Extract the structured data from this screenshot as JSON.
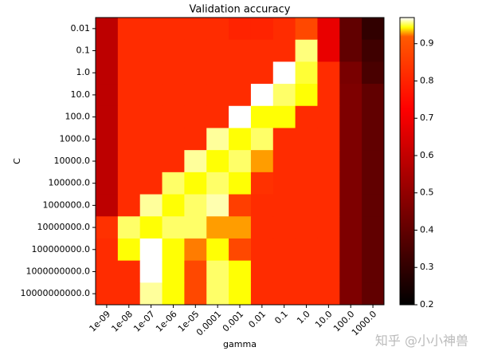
{
  "chart_data": {
    "type": "heatmap",
    "title": "Validation accuracy",
    "x_label": "gamma",
    "y_label": "C",
    "x_categories": [
      "1e-09",
      "1e-08",
      "1e-07",
      "1e-06",
      "1e-05",
      "0.0001",
      "0.001",
      "0.01",
      "0.1",
      "1.0",
      "10.0",
      "100.0",
      "1000.0"
    ],
    "y_categories": [
      "0.01",
      "0.1",
      "1.0",
      "10.0",
      "100.0",
      "1000.0",
      "10000.0",
      "100000.0",
      "1000000.0",
      "10000000.0",
      "100000000.0",
      "1000000000.0",
      "10000000000.0"
    ],
    "values": [
      [
        0.59,
        0.82,
        0.82,
        0.82,
        0.82,
        0.82,
        0.8,
        0.8,
        0.82,
        0.88,
        0.68,
        0.4,
        0.3
      ],
      [
        0.59,
        0.82,
        0.82,
        0.82,
        0.82,
        0.82,
        0.82,
        0.82,
        0.82,
        0.957,
        0.68,
        0.4,
        0.33
      ],
      [
        0.59,
        0.82,
        0.82,
        0.82,
        0.82,
        0.82,
        0.82,
        0.82,
        0.97,
        0.95,
        0.82,
        0.45,
        0.35
      ],
      [
        0.59,
        0.82,
        0.82,
        0.82,
        0.82,
        0.82,
        0.82,
        0.97,
        0.955,
        0.945,
        0.82,
        0.46,
        0.4
      ],
      [
        0.59,
        0.82,
        0.82,
        0.82,
        0.82,
        0.82,
        0.97,
        0.945,
        0.945,
        0.82,
        0.82,
        0.46,
        0.4
      ],
      [
        0.59,
        0.82,
        0.82,
        0.82,
        0.82,
        0.96,
        0.945,
        0.955,
        0.82,
        0.82,
        0.82,
        0.46,
        0.4
      ],
      [
        0.59,
        0.82,
        0.82,
        0.82,
        0.96,
        0.945,
        0.955,
        0.93,
        0.82,
        0.82,
        0.82,
        0.46,
        0.4
      ],
      [
        0.59,
        0.82,
        0.82,
        0.955,
        0.945,
        0.955,
        0.945,
        0.83,
        0.82,
        0.82,
        0.82,
        0.46,
        0.4
      ],
      [
        0.59,
        0.82,
        0.96,
        0.945,
        0.955,
        0.962,
        0.86,
        0.82,
        0.82,
        0.82,
        0.82,
        0.46,
        0.4
      ],
      [
        0.83,
        0.955,
        0.945,
        0.955,
        0.955,
        0.93,
        0.93,
        0.82,
        0.82,
        0.82,
        0.82,
        0.46,
        0.4
      ],
      [
        0.82,
        0.945,
        0.97,
        0.945,
        0.925,
        0.945,
        0.88,
        0.82,
        0.82,
        0.82,
        0.82,
        0.46,
        0.4
      ],
      [
        0.82,
        0.82,
        0.97,
        0.945,
        0.88,
        0.955,
        0.945,
        0.82,
        0.82,
        0.82,
        0.82,
        0.46,
        0.4
      ],
      [
        0.82,
        0.82,
        0.96,
        0.945,
        0.88,
        0.955,
        0.945,
        0.82,
        0.82,
        0.82,
        0.82,
        0.46,
        0.4
      ]
    ],
    "colormap": "hot",
    "colorbar": {
      "lim": [
        0.2,
        0.97
      ],
      "midpoint": 0.92,
      "ticks": [
        0.2,
        0.3,
        0.4,
        0.5,
        0.6,
        0.7,
        0.8,
        0.9
      ]
    },
    "watermark": "知乎 @小小神兽"
  }
}
